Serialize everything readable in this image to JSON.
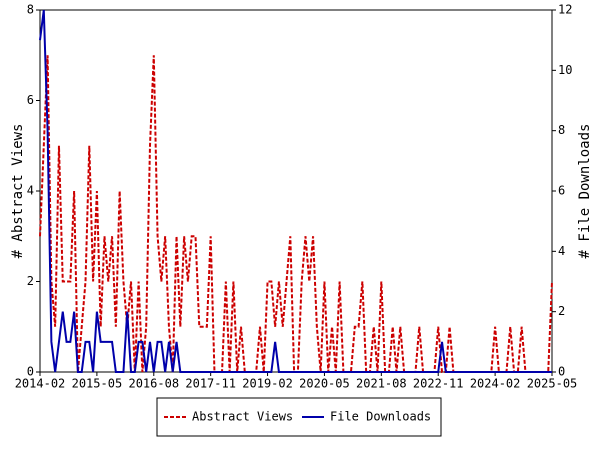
{
  "chart_data": {
    "type": "line",
    "categories": [
      "2014-02",
      null,
      null,
      null,
      null,
      null,
      null,
      null,
      null,
      null,
      null,
      null,
      null,
      null,
      null,
      "2015-05",
      null,
      null,
      null,
      null,
      null,
      null,
      null,
      null,
      null,
      null,
      null,
      null,
      null,
      null,
      "2016-08",
      null,
      null,
      null,
      null,
      null,
      null,
      null,
      null,
      null,
      null,
      null,
      null,
      null,
      null,
      "2017-11",
      null,
      null,
      null,
      null,
      null,
      null,
      null,
      null,
      null,
      null,
      null,
      null,
      null,
      null,
      "2019-02",
      null,
      null,
      null,
      null,
      null,
      null,
      null,
      null,
      null,
      null,
      null,
      null,
      null,
      null,
      "2020-05",
      null,
      null,
      null,
      null,
      null,
      null,
      null,
      null,
      null,
      null,
      null,
      null,
      null,
      null,
      "2021-08",
      null,
      null,
      null,
      null,
      null,
      null,
      null,
      null,
      null,
      null,
      null,
      null,
      null,
      null,
      "2022-11",
      null,
      null,
      null,
      null,
      null,
      null,
      null,
      null,
      null,
      null,
      null,
      null,
      null,
      null,
      "2024-02",
      null,
      null,
      null,
      null,
      null,
      null,
      null,
      null,
      null,
      null,
      null,
      null,
      null,
      null,
      "2025-05"
    ],
    "y_label": "# Abstract Views",
    "y2_label": "# File Downloads",
    "ylim": [
      0,
      8
    ],
    "yticks": [
      0,
      2,
      4,
      6,
      8
    ],
    "y2lim": [
      0,
      12
    ],
    "y2ticks": [
      0,
      2,
      4,
      6,
      8,
      10,
      12
    ],
    "series": [
      {
        "name": "Abstract Views",
        "color": "#cc0000",
        "dash": true,
        "values": [
          3,
          5,
          7,
          2,
          1,
          5,
          2,
          2,
          2,
          4,
          0,
          1,
          2,
          5,
          2,
          4,
          1,
          3,
          2,
          3,
          1,
          4,
          2,
          1,
          2,
          0,
          2,
          0,
          1,
          5,
          7,
          3,
          2,
          3,
          1,
          0,
          3,
          1,
          3,
          2,
          3,
          3,
          1,
          1,
          1,
          3,
          0,
          0,
          0,
          2,
          0,
          2,
          0,
          1,
          0,
          0,
          0,
          0,
          1,
          0,
          2,
          2,
          1,
          2,
          1,
          2,
          3,
          0,
          0,
          2,
          3,
          2,
          3,
          1,
          0,
          2,
          0,
          1,
          0,
          2,
          0,
          0,
          0,
          1,
          1,
          2,
          0,
          0,
          1,
          0,
          2,
          0,
          0,
          1,
          0,
          1,
          0,
          0,
          0,
          0,
          1,
          0,
          0,
          0,
          0,
          1,
          0,
          0,
          1,
          0,
          0,
          0,
          0,
          0,
          0,
          0,
          0,
          0,
          0,
          0,
          1,
          0,
          0,
          0,
          1,
          0,
          0,
          1,
          0,
          0,
          0,
          0,
          0,
          0,
          0,
          2
        ]
      },
      {
        "name": "File Downloads",
        "color": "#0000aa",
        "axis": "y2",
        "dash": false,
        "values": [
          11,
          12,
          8,
          1,
          0,
          1,
          2,
          1,
          1,
          2,
          0,
          0,
          1,
          1,
          0,
          2,
          1,
          1,
          1,
          1,
          0,
          0,
          0,
          2,
          0,
          0,
          1,
          1,
          0,
          1,
          0,
          1,
          1,
          0,
          1,
          0,
          1,
          0,
          0,
          0,
          0,
          0,
          0,
          0,
          0,
          0,
          0,
          0,
          0,
          0,
          0,
          0,
          0,
          0,
          0,
          0,
          0,
          0,
          0,
          0,
          0,
          0,
          1,
          0,
          0,
          0,
          0,
          0,
          0,
          0,
          0,
          0,
          0,
          0,
          0,
          0,
          0,
          0,
          0,
          0,
          0,
          0,
          0,
          0,
          0,
          0,
          0,
          0,
          0,
          0,
          0,
          0,
          0,
          0,
          0,
          0,
          0,
          0,
          0,
          0,
          0,
          0,
          0,
          0,
          0,
          0,
          1,
          0,
          0,
          0,
          0,
          0,
          0,
          0,
          0,
          0,
          0,
          0,
          0,
          0,
          0,
          0,
          0,
          0,
          0,
          0,
          0,
          0,
          0,
          0,
          0,
          0,
          0,
          0,
          0,
          0
        ]
      }
    ]
  }
}
